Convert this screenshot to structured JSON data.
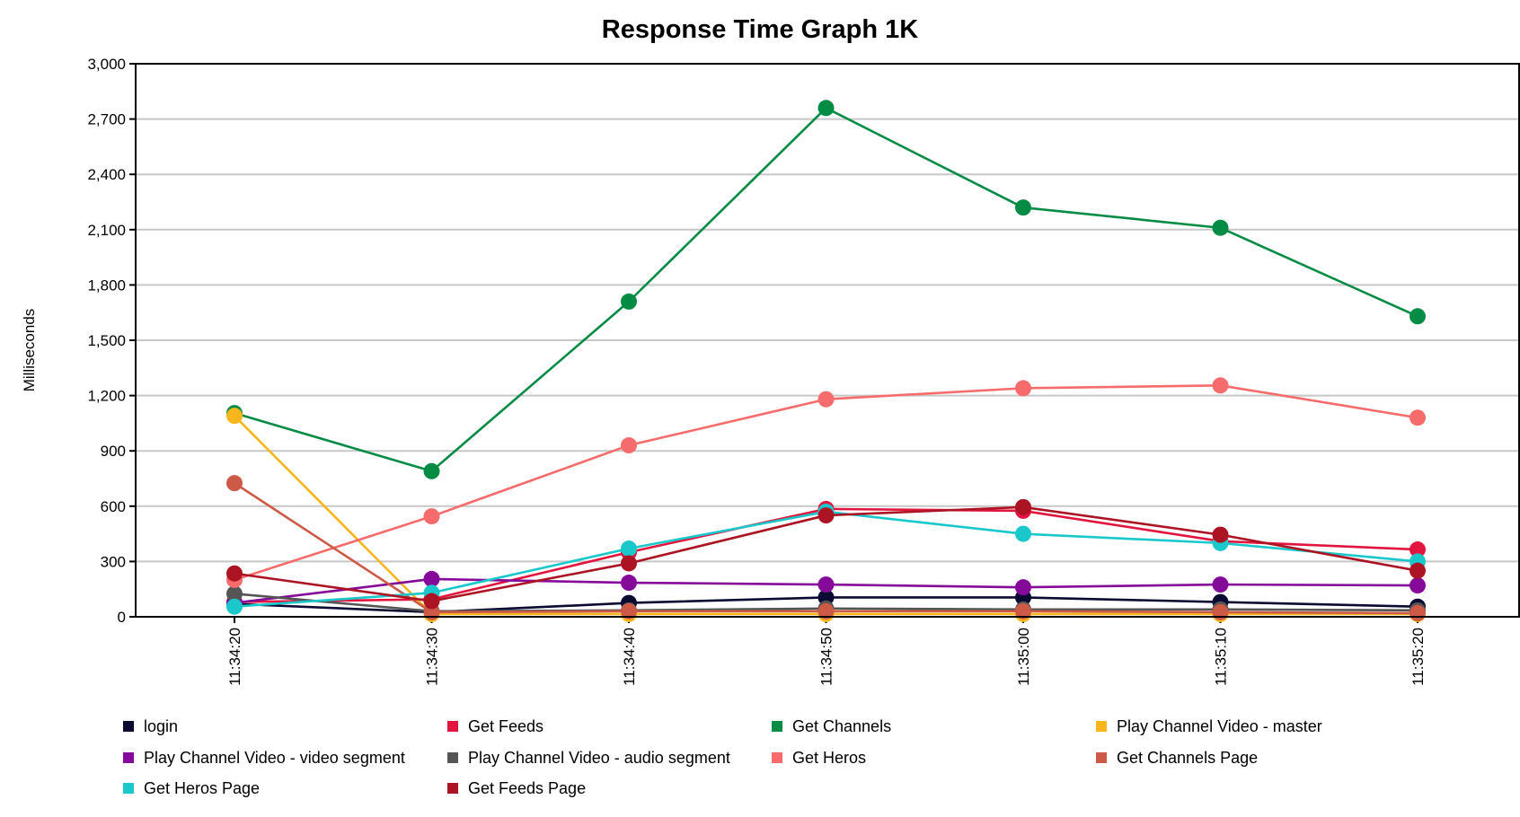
{
  "chart_data": {
    "type": "line",
    "title": "Response Time Graph 1K",
    "xlabel": "",
    "ylabel": "Milliseconds",
    "x": [
      "11:34:20",
      "11:34:30",
      "11:34:40",
      "11:34:50",
      "11:35:00",
      "11:35:10",
      "11:35:20"
    ],
    "ylim": [
      0,
      3000
    ],
    "yticks": [
      0,
      300,
      600,
      900,
      1200,
      1500,
      1800,
      2100,
      2400,
      2700,
      3000
    ],
    "ytick_labels": [
      "0",
      "300",
      "600",
      "900",
      "1,200",
      "1,500",
      "1,800",
      "2,100",
      "2,400",
      "2,700",
      "3,000"
    ],
    "grid": true,
    "legend_position": "bottom",
    "series": [
      {
        "name": "login",
        "color": "#0b0a32",
        "values": [
          70,
          25,
          75,
          105,
          105,
          80,
          55
        ]
      },
      {
        "name": "Get Feeds",
        "color": "#e2153f",
        "values": [
          80,
          95,
          350,
          585,
          575,
          410,
          365
        ]
      },
      {
        "name": "Get Channels",
        "color": "#058c44",
        "values": [
          1105,
          790,
          1710,
          2760,
          2220,
          2110,
          1630
        ]
      },
      {
        "name": "Play Channel Video - master",
        "color": "#f6b61c",
        "values": [
          1090,
          15,
          15,
          15,
          15,
          15,
          15
        ]
      },
      {
        "name": "Play Channel Video - video segment",
        "color": "#860a99",
        "values": [
          75,
          205,
          185,
          175,
          160,
          175,
          170
        ]
      },
      {
        "name": "Play Channel Video - audio segment",
        "color": "#555555",
        "values": [
          125,
          30,
          35,
          45,
          40,
          40,
          35
        ]
      },
      {
        "name": "Get Heros",
        "color": "#f66b6b",
        "values": [
          200,
          545,
          930,
          1180,
          1240,
          1255,
          1080
        ]
      },
      {
        "name": "Get Channels Page",
        "color": "#cd5a46",
        "values": [
          725,
          25,
          30,
          30,
          30,
          25,
          20
        ]
      },
      {
        "name": "Get Heros Page",
        "color": "#1ac8cc",
        "values": [
          55,
          130,
          370,
          570,
          450,
          400,
          300
        ]
      },
      {
        "name": "Get Feeds Page",
        "color": "#ac1424",
        "values": [
          235,
          85,
          290,
          550,
          595,
          445,
          250
        ]
      }
    ]
  }
}
